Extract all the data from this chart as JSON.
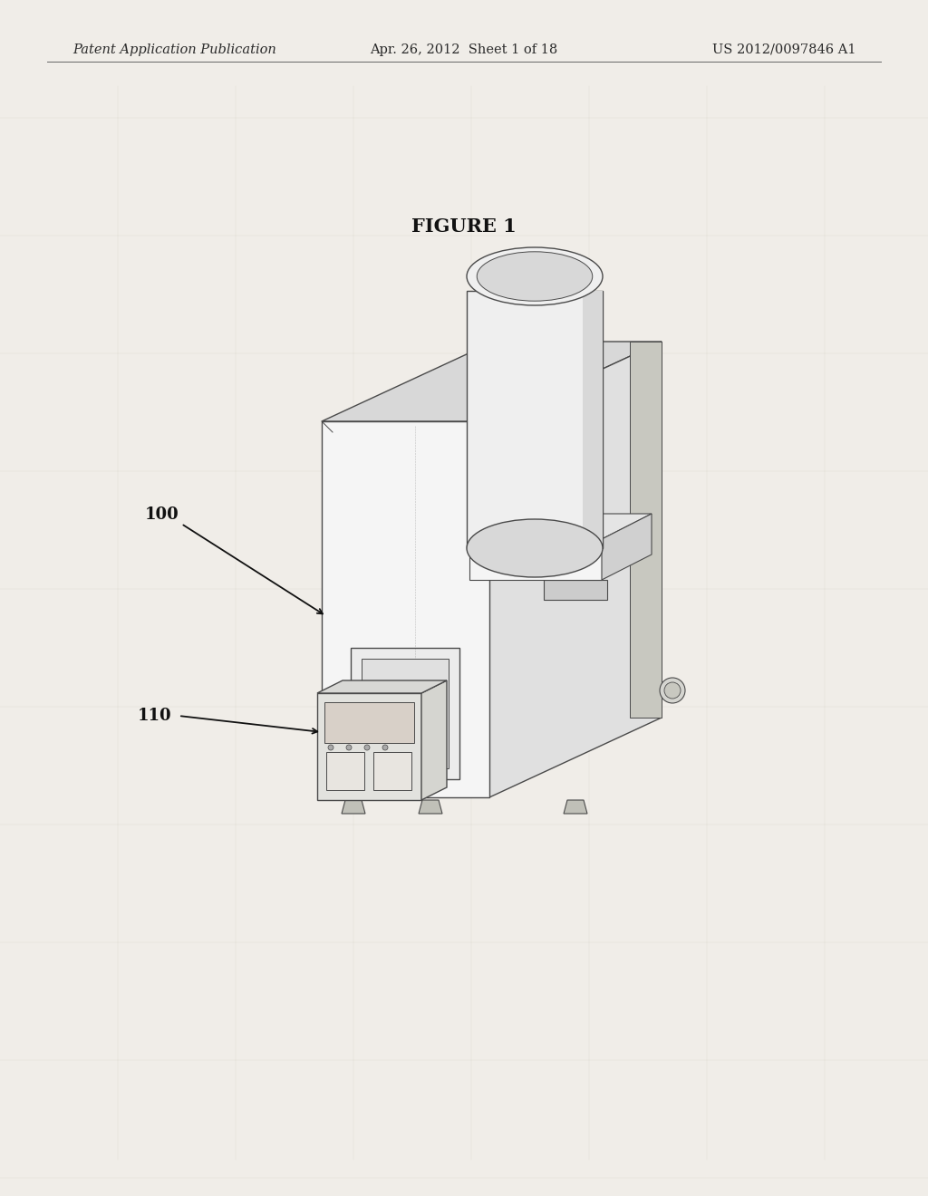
{
  "bg_color": "#f0ede8",
  "header_left": "Patent Application Publication",
  "header_center": "Apr. 26, 2012  Sheet 1 of 18",
  "header_right": "US 2012/0097846 A1",
  "figure_title": "FIGURE 1",
  "label_100": "100",
  "label_110": "110",
  "header_font_size": 10.5,
  "figure_title_font_size": 15,
  "label_font_size": 13,
  "edge_color": "#4a4a4a",
  "face_front": "#f5f5f5",
  "face_right": "#e0e0e0",
  "face_top": "#d8d8d8",
  "face_cyl": "#efefef",
  "face_cyl_shade": "#d8d8d8",
  "face_collar": "#e5e5e5",
  "face_collar_right": "#d0d0d0",
  "face_detail": "#e8e8e8",
  "face_probe": "#d8d8d5",
  "face_slot": "#cccccc",
  "line_width": 0.9
}
